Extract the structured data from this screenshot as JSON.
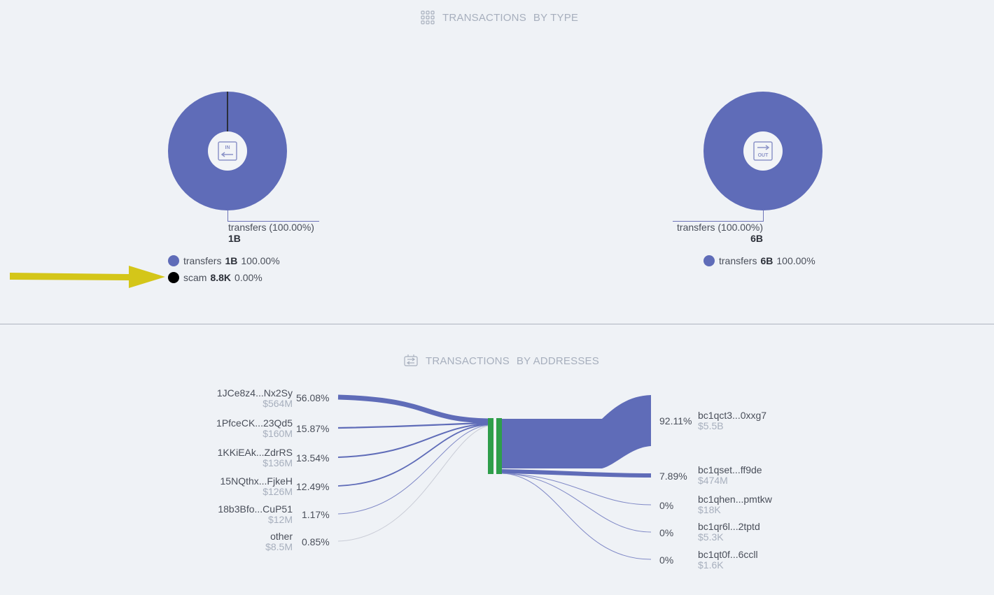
{
  "colors": {
    "primary": "#5f6cb8",
    "scam": "#000000",
    "hub": "#2e9e4b",
    "arrow": "#d4c619",
    "muted": "#a7afbd"
  },
  "type_section": {
    "title_part1": "TRANSACTIONS",
    "title_part2": "BY TYPE",
    "icon": "grid-dots-icon",
    "in_chart": {
      "center_icon": "incoming-icon",
      "callout_label": "transfers (100.00%)",
      "callout_value": "1B",
      "legend": [
        {
          "name": "transfers",
          "value": "1B",
          "percent": "100.00%",
          "color": "#5f6cb8"
        },
        {
          "name": "scam",
          "value": "8.8K",
          "percent": "0.00%",
          "color": "#000000"
        }
      ]
    },
    "out_chart": {
      "center_icon": "outgoing-icon",
      "callout_label": "transfers (100.00%)",
      "callout_value": "6B",
      "legend": [
        {
          "name": "transfers",
          "value": "6B",
          "percent": "100.00%",
          "color": "#5f6cb8"
        }
      ]
    }
  },
  "address_section": {
    "title_part1": "TRANSACTIONS",
    "title_part2": "BY ADDRESSES",
    "icon": "transfer-icon",
    "inputs": [
      {
        "address": "1JCe8z4...Nx2Sy",
        "amount": "$564M",
        "percent": "56.08%"
      },
      {
        "address": "1PfceCK...23Qd5",
        "amount": "$160M",
        "percent": "15.87%"
      },
      {
        "address": "1KKiEAk...ZdrRS",
        "amount": "$136M",
        "percent": "13.54%"
      },
      {
        "address": "15NQthx...FjkeH",
        "amount": "$126M",
        "percent": "12.49%"
      },
      {
        "address": "18b3Bfo...CuP51",
        "amount": "$12M",
        "percent": "1.17%"
      },
      {
        "address": "other",
        "amount": "$8.5M",
        "percent": "0.85%"
      }
    ],
    "outputs": [
      {
        "address": "bc1qct3...0xxg7",
        "amount": "$5.5B",
        "percent": "92.11%"
      },
      {
        "address": "bc1qset...ff9de",
        "amount": "$474M",
        "percent": "7.89%"
      },
      {
        "address": "bc1qhen...pmtkw",
        "amount": "$18K",
        "percent": "0%"
      },
      {
        "address": "bc1qr6l...2tptd",
        "amount": "$5.3K",
        "percent": "0%"
      },
      {
        "address": "bc1qt0f...6ccll",
        "amount": "$1.6K",
        "percent": "0%"
      }
    ]
  }
}
